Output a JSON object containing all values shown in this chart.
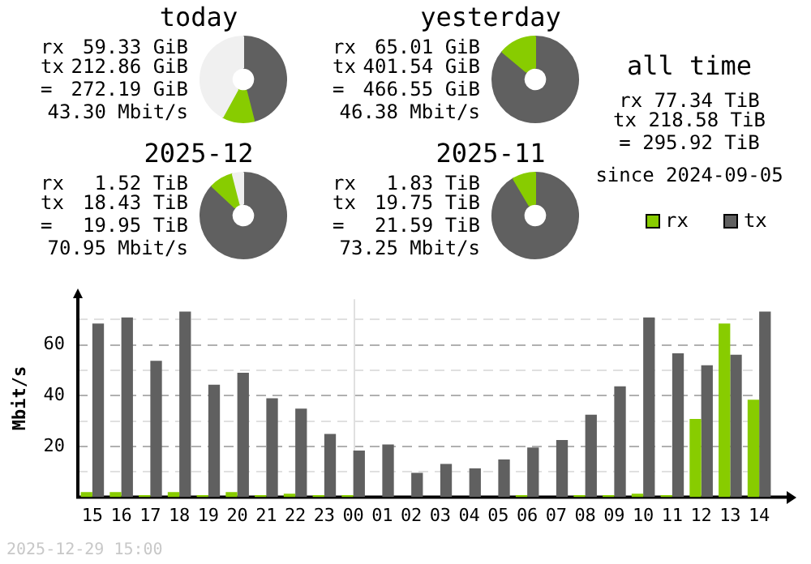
{
  "chart_data": [
    {
      "type": "donut",
      "title": "today",
      "categories": [
        null,
        null,
        null
      ],
      "values": [
        46,
        12,
        42
      ],
      "colors": [
        "#606060",
        "#88cc00",
        "#f0f0f0"
      ],
      "annotations": [
        "rx",
        "59.33 GiB",
        "tx",
        "212.86 GiB",
        "=",
        "272.19 GiB",
        "43.30 Mbit/s"
      ],
      "legend": false
    },
    {
      "type": "donut",
      "title": "yesterday",
      "categories": [
        null,
        null
      ],
      "values": [
        86.1,
        13.9
      ],
      "colors": [
        "#606060",
        "#88cc00"
      ],
      "annotations": [
        "rx",
        "65.01 GiB",
        "tx",
        "401.54 GiB",
        "=",
        "466.55 GiB",
        "46.38 Mbit/s"
      ],
      "legend": false
    },
    {
      "type": "other",
      "title": "all time",
      "annotations": [
        "rx 77.34 TiB",
        "tx 218.58 TiB",
        "= 295.92 TiB",
        "since 2024-09-05"
      ]
    },
    {
      "type": "donut",
      "title": "2025-12",
      "categories": [
        null,
        null,
        null
      ],
      "values": [
        87,
        9,
        4
      ],
      "colors": [
        "#606060",
        "#88cc00",
        "#f0f0f0"
      ],
      "annotations": [
        "rx",
        "1.52 TiB",
        "tx",
        "18.43 TiB",
        "=",
        "19.95 TiB",
        "70.95 Mbit/s"
      ],
      "legend": false
    },
    {
      "type": "donut",
      "title": "2025-11",
      "categories": [
        null,
        null
      ],
      "values": [
        91.5,
        8.5
      ],
      "colors": [
        "#606060",
        "#88cc00"
      ],
      "annotations": [
        "rx",
        "1.83 TiB",
        "tx",
        "19.75 TiB",
        "=",
        "21.59 TiB",
        "73.25 Mbit/s"
      ],
      "legend": false
    },
    {
      "type": "bar",
      "categories": [
        "15",
        "16",
        "17",
        "18",
        "19",
        "20",
        "21",
        "22",
        "23",
        "00",
        "01",
        "02",
        "03",
        "04",
        "05",
        "06",
        "07",
        "08",
        "09",
        "10",
        "11",
        "12",
        "13",
        "14"
      ],
      "series": [
        {
          "name": "rx",
          "color": "#88cc00",
          "values": [
            2.0,
            2.0,
            0.8,
            2.0,
            0.8,
            2.0,
            0.8,
            1.4,
            0.8,
            0.8,
            0,
            0,
            0,
            0,
            0,
            0.8,
            0,
            0.8,
            0.8,
            1.4,
            0.8,
            30.8,
            68.4,
            38.4
          ]
        },
        {
          "name": "tx",
          "color": "#606060",
          "values": [
            68.4,
            70.8,
            53.7,
            73.1,
            44.3,
            49.0,
            39.0,
            34.9,
            24.9,
            18.4,
            20.8,
            9.6,
            13.1,
            11.4,
            14.9,
            19.6,
            22.5,
            32.5,
            43.7,
            70.8,
            56.7,
            52.0,
            56.1,
            73.1
          ]
        }
      ],
      "ylabel": "Mbit/s",
      "ylim": [
        0,
        78
      ],
      "yticks": [
        {
          "value": 10,
          "label": null
        },
        20,
        {
          "value": 30,
          "label": null
        },
        40,
        {
          "value": 50,
          "label": null
        },
        60,
        {
          "value": 70,
          "label": null
        }
      ],
      "grid": "y",
      "legend": "top right",
      "ref_lines": [
        {
          "axis": "x",
          "value": "00",
          "color": "#e0e0e0"
        }
      ],
      "annotations": [
        "2025-12-29 15:00"
      ]
    }
  ]
}
